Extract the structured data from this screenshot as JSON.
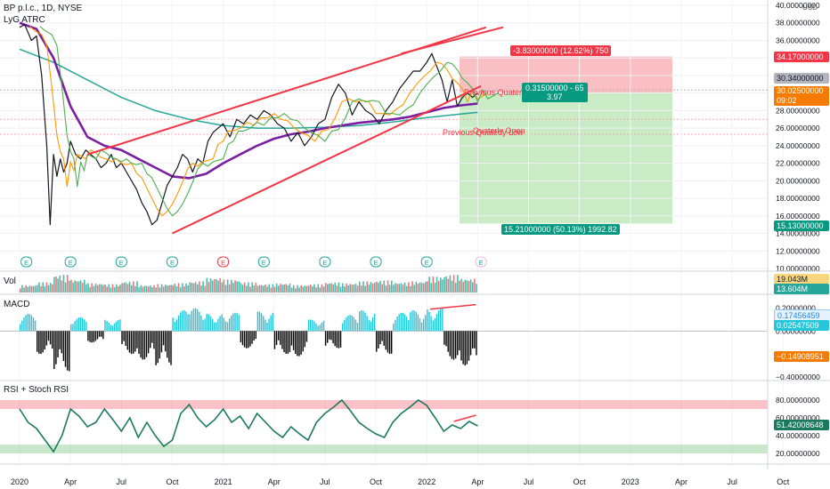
{
  "header": {
    "symbol_line": "BP p.l.c., 1D, NYSE",
    "indicator": "LyG ATRC",
    "currency": "USD"
  },
  "panes": {
    "volume": {
      "label": "Vol",
      "badges": [
        "19.043M",
        "13.604M"
      ]
    },
    "macd": {
      "label": "MACD",
      "badges": [
        "0.17456459",
        "0.02547509",
        "−0.14908951"
      ]
    },
    "rsi": {
      "label": "RSI + Stoch RSI",
      "badges": [
        "51.42008648"
      ]
    }
  },
  "annotations": {
    "quarterly_high": "Previous Quaterly High",
    "quarterly_open": "Quaterly Open",
    "quarterly_low": "Previous Quaterly Low"
  },
  "position": {
    "target_label": "-3.83000000 (12.62%) 750",
    "stop_label": "15.21000000 (50.13%) 1992.82",
    "center_label_1": "0.31500000 - 65",
    "center_label_2": "3.97"
  },
  "price_badges": {
    "top": "34.17000000",
    "mid": "30.34000000",
    "current": "30.02500000",
    "countdown": "09:02",
    "bottom": "15.13000000"
  },
  "earnings_markers": [
    "E",
    "E",
    "E",
    "E",
    "E",
    "E",
    "E",
    "E",
    "E",
    "E"
  ],
  "colors": {
    "price": "#131722",
    "sma_fast": "#000000",
    "ma_orange": "#ff9800",
    "ma_green": "#4caf50",
    "ma_purple": "#7b1fa2",
    "ma_teal": "#26a69a",
    "trendline": "#f23645",
    "macd_hist_pos": "#26c6da",
    "macd_hist_neg": "#000000",
    "rsi_line": "#1b7a5e",
    "target_zone": "#f8a9ae",
    "stop_zone": "#b7e4b3",
    "badge_red": "#f23645",
    "badge_green": "#089981",
    "badge_orange": "#f57c00"
  },
  "chart_data": [
    {
      "type": "line",
      "title": "",
      "x_ticks": [
        "2020",
        "Apr",
        "Jul",
        "Oct",
        "2021",
        "Apr",
        "Jul",
        "Oct",
        "2022",
        "Apr",
        "Jul",
        "Oct",
        "2023",
        "Apr",
        "Jul",
        "Oct"
      ],
      "y_ticks": [
        "10.00000000",
        "12.00000000",
        "14.00000000",
        "16.00000000",
        "18.00000000",
        "20.00000000",
        "22.00000000",
        "24.00000000",
        "26.00000000",
        "28.00000000",
        "30.00000000",
        "32.00000000",
        "34.00000000",
        "36.00000000",
        "38.00000000",
        "40.00000000"
      ],
      "ylim": [
        10,
        40
      ],
      "x_unit": "months since Jan 2020",
      "series": [
        {
          "x": [
            0,
            0.3,
            0.7,
            1.0,
            1.3,
            1.6,
            1.8,
            2.0,
            2.2,
            2.4,
            2.6,
            2.8,
            3.0,
            3.3,
            3.6,
            3.9,
            4.2,
            4.5,
            4.8,
            5.1,
            5.4,
            5.7,
            6.0,
            6.3,
            6.6,
            6.9,
            7.2,
            7.5,
            7.8,
            8.1,
            8.4,
            8.7,
            9.0,
            9.3,
            9.6,
            9.9,
            10.2,
            10.5,
            10.8,
            11.1,
            11.4,
            11.7,
            12.0,
            12.4,
            12.8,
            13.2,
            13.6,
            14.0,
            14.4,
            14.8,
            15.2,
            15.6,
            16.0,
            16.4,
            16.8,
            17.2,
            17.6,
            18.0,
            18.4,
            18.8,
            19.2,
            19.6,
            20.0,
            20.4,
            20.8,
            21.2,
            21.6,
            22.0,
            22.4,
            22.8,
            23.2,
            23.6,
            24.0,
            24.3,
            24.6,
            24.9,
            25.2,
            25.5,
            25.8,
            26.1,
            26.4,
            26.7,
            27.0
          ],
          "values": [
            37.5,
            37.8,
            36.0,
            36.5,
            32.0,
            24.0,
            15.0,
            23.0,
            20.5,
            22.5,
            21.0,
            22.0,
            24.5,
            23.0,
            22.5,
            23.5,
            23.0,
            22.5,
            21.5,
            22.0,
            23.0,
            21.5,
            22.0,
            21.0,
            20.0,
            19.0,
            17.5,
            16.5,
            15.0,
            15.5,
            17.5,
            19.5,
            20.5,
            21.5,
            23.0,
            22.5,
            21.0,
            22.5,
            22.0,
            24.5,
            25.5,
            26.0,
            26.5,
            25.0,
            27.0,
            26.5,
            27.5,
            27.0,
            28.0,
            27.5,
            26.5,
            26.0,
            24.5,
            25.5,
            24.0,
            25.0,
            26.5,
            27.0,
            29.5,
            31.0,
            30.0,
            27.5,
            29.0,
            28.0,
            27.5,
            26.5,
            28.0,
            29.0,
            30.5,
            31.5,
            32.5,
            32.5,
            33.5,
            34.5,
            33.0,
            31.5,
            29.0,
            31.5,
            28.5,
            29.5,
            30.0,
            29.5,
            30.0
          ]
        },
        {
          "x": [
            0,
            1,
            2,
            3,
            4,
            5,
            6,
            7,
            8,
            9,
            10,
            11,
            12,
            13,
            14,
            15,
            16,
            17,
            18,
            19,
            20,
            21,
            22,
            23,
            24,
            25,
            26,
            27
          ],
          "values": [
            38.0,
            37.3,
            34.0,
            28.5,
            25.0,
            24.0,
            23.5,
            22.5,
            21.5,
            20.5,
            20.3,
            20.8,
            22.0,
            23.0,
            24.0,
            24.8,
            25.3,
            25.6,
            26.0,
            26.3,
            26.6,
            26.8,
            27.0,
            27.3,
            27.8,
            28.3,
            28.6,
            28.8
          ]
        },
        {
          "x": [
            0,
            2,
            4,
            6,
            8,
            10,
            12,
            14,
            16,
            18,
            20,
            22,
            24,
            26,
            27
          ],
          "values": [
            35.0,
            33.5,
            31.5,
            29.5,
            28.0,
            27.0,
            26.3,
            26.0,
            26.0,
            26.1,
            26.3,
            26.7,
            27.2,
            27.6,
            27.8
          ]
        }
      ],
      "trendlines": [
        {
          "x": [
            9.0,
            27.2
          ],
          "values": [
            14.0,
            30.8
          ]
        },
        {
          "x": [
            4.0,
            27.5
          ],
          "values": [
            23.0,
            37.5
          ]
        },
        {
          "x": [
            22.5,
            28.5
          ],
          "values": [
            34.5,
            37.5
          ]
        }
      ],
      "horizontal_levels": [
        30.34,
        27.0,
        25.3
      ],
      "position_zone": {
        "entry": 30.025,
        "target": 34.17,
        "stop": 15.13
      }
    },
    {
      "type": "bar",
      "title": "",
      "x_unit": "months since Jan 2020",
      "x": [
        0,
        1,
        2,
        3,
        4,
        5,
        6,
        7,
        8,
        9,
        10,
        11,
        12,
        13,
        14,
        15,
        16,
        17,
        18,
        19,
        20,
        21,
        22,
        23,
        24,
        25,
        26,
        27
      ],
      "values": [
        8,
        11,
        19,
        14,
        10,
        9,
        12,
        8,
        9,
        10,
        12,
        16,
        14,
        11,
        9,
        10,
        8,
        9,
        11,
        10,
        12,
        13,
        11,
        12,
        17,
        19,
        15,
        13.6
      ]
    },
    {
      "type": "bar",
      "title": "",
      "y_ticks": [
        "−0.40000000",
        "0.00000000",
        "0.20000000"
      ],
      "ylim": [
        -0.4,
        0.25
      ],
      "x_unit": "months since Jan 2020",
      "x": [
        0,
        1,
        2,
        3,
        4,
        5,
        6,
        7,
        8,
        9,
        10,
        11,
        12,
        13,
        14,
        15,
        16,
        17,
        18,
        19,
        20,
        21,
        22,
        23,
        24,
        25,
        26,
        27
      ],
      "values": [
        0.15,
        -0.2,
        -0.35,
        0.12,
        -0.1,
        0.1,
        -0.2,
        -0.25,
        -0.3,
        0.18,
        0.2,
        0.15,
        0.16,
        -0.15,
        0.17,
        -0.2,
        -0.22,
        0.1,
        -0.15,
        0.14,
        0.18,
        -0.2,
        0.16,
        0.18,
        0.2,
        -0.25,
        -0.3,
        0.17
      ]
    },
    {
      "type": "line",
      "title": "",
      "y_ticks": [
        "20.00000000",
        "40.00000000",
        "60.00000000",
        "80.00000000"
      ],
      "ylim": [
        10,
        90
      ],
      "x_unit": "months since Jan 2020",
      "x": [
        0,
        0.5,
        1.0,
        1.5,
        2.0,
        2.5,
        3.0,
        3.5,
        4.0,
        4.5,
        5.0,
        5.5,
        6.0,
        6.5,
        7.0,
        7.5,
        8.0,
        8.5,
        9.0,
        9.5,
        10.0,
        10.5,
        11.0,
        11.5,
        12.0,
        12.5,
        13.0,
        13.5,
        14.0,
        14.5,
        15.0,
        15.5,
        16.0,
        16.5,
        17.0,
        17.5,
        18.0,
        18.5,
        19.0,
        19.5,
        20.0,
        20.5,
        21.0,
        21.5,
        22.0,
        22.5,
        23.0,
        23.5,
        24.0,
        24.5,
        25.0,
        25.5,
        26.0,
        26.5,
        27.0
      ],
      "values": [
        70,
        55,
        48,
        35,
        22,
        40,
        70,
        62,
        50,
        55,
        70,
        58,
        45,
        60,
        38,
        55,
        40,
        28,
        35,
        65,
        75,
        60,
        50,
        58,
        70,
        55,
        62,
        48,
        65,
        55,
        45,
        38,
        50,
        42,
        35,
        55,
        65,
        72,
        80,
        68,
        55,
        48,
        42,
        38,
        55,
        65,
        72,
        80,
        74,
        60,
        45,
        52,
        48,
        56,
        51
      ]
    }
  ]
}
